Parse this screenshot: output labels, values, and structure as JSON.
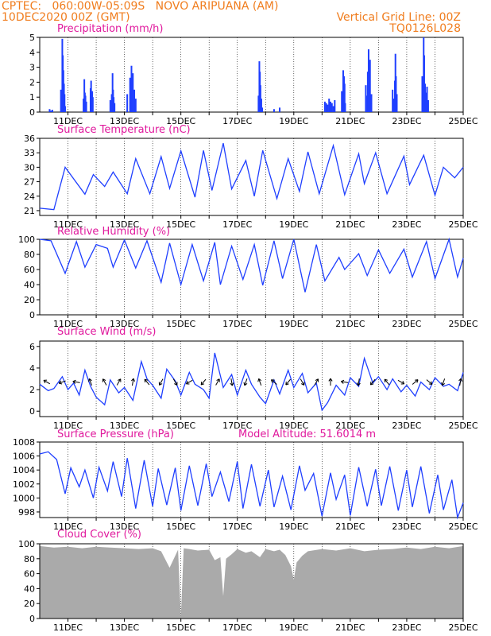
{
  "header": {
    "line1_left": "CPTEC:   060:00W-05:09S   NOVO ARIPUANA (AM)",
    "line2_left": "10DEC2020 00Z (GMT)",
    "line2_right": "Vertical Grid Line: 00Z",
    "line3_right": "TQ0126L028"
  },
  "colors": {
    "header": "#f07d1e",
    "title": "#e0199d",
    "series": "#1f3fff",
    "cloud": "#aaaaaa"
  },
  "x_axis": {
    "start_day": 10,
    "end_day": 25,
    "tick_labels": [
      "11DEC",
      "13DEC",
      "15DEC",
      "17DEC",
      "19DEC",
      "21DEC",
      "23DEC",
      "25DEC"
    ]
  },
  "chart_data": [
    {
      "type": "bar",
      "title": "Precipitation (mm/h)",
      "ylim": [
        0,
        5
      ],
      "yticks": [
        0,
        1,
        2,
        3,
        4,
        5
      ],
      "x_days_from_10dec": [
        0.35,
        0.4,
        0.45,
        0.75,
        0.8,
        0.82,
        0.84,
        0.86,
        0.88,
        0.9,
        1.55,
        1.58,
        1.6,
        1.62,
        1.65,
        1.8,
        1.82,
        1.84,
        1.86,
        1.88,
        2.5,
        2.55,
        2.58,
        2.6,
        2.62,
        2.65,
        3.1,
        3.2,
        3.25,
        3.3,
        3.35,
        3.4,
        7.75,
        7.78,
        7.8,
        7.82,
        7.85,
        7.88,
        8.3,
        8.5,
        10.1,
        10.15,
        10.2,
        10.25,
        10.3,
        10.35,
        10.4,
        10.45,
        10.7,
        10.75,
        10.78,
        10.8,
        10.82,
        11.55,
        11.6,
        11.62,
        11.65,
        11.7,
        11.75,
        12.5,
        12.55,
        12.58,
        12.6,
        12.62,
        12.65,
        13.55,
        13.6,
        13.62,
        13.65,
        13.68,
        13.72,
        13.76
      ],
      "values": [
        0.2,
        0.1,
        0.15,
        1.5,
        4.9,
        3.8,
        2.8,
        1.9,
        1.2,
        0.4,
        0.9,
        2.2,
        1.3,
        1.1,
        0.7,
        1.6,
        2.1,
        1.2,
        1.4,
        1.0,
        0.8,
        1.2,
        2.6,
        1.5,
        1.0,
        0.6,
        1.2,
        2.3,
        3.1,
        2.6,
        1.5,
        0.9,
        1.1,
        3.4,
        2.7,
        1.8,
        0.9,
        0.3,
        0.2,
        0.3,
        0.7,
        0.6,
        0.5,
        0.9,
        0.7,
        0.6,
        0.4,
        0.8,
        1.4,
        2.8,
        2.4,
        1.9,
        0.6,
        1.8,
        1.1,
        2.7,
        4.2,
        3.5,
        1.2,
        1.5,
        0.9,
        2.1,
        3.9,
        2.4,
        1.2,
        2.4,
        5.0,
        3.8,
        1.9,
        1.3,
        1.7,
        0.8
      ]
    },
    {
      "type": "line",
      "title": "Surface Temperature (nC)",
      "ylim": [
        20,
        36
      ],
      "yticks": [
        21,
        24,
        27,
        30,
        33,
        36
      ],
      "x": [
        0,
        0.5,
        0.9,
        1.6,
        1.9,
        2.3,
        2.6,
        3.1,
        3.4,
        3.9,
        4.3,
        4.6,
        5.0,
        5.5,
        5.8,
        6.1,
        6.5,
        6.8,
        7.3,
        7.6,
        7.9,
        8.4,
        8.8,
        9.2,
        9.5,
        9.9,
        10.4,
        10.8,
        11.3,
        11.5,
        11.9,
        12.3,
        12.9,
        13.1,
        13.6,
        14.0,
        14.3,
        14.7,
        15.0
      ],
      "values": [
        21.5,
        21.2,
        30.0,
        24.4,
        28.5,
        26.0,
        29.0,
        24.5,
        31.8,
        24.5,
        32.2,
        25.6,
        33.4,
        23.8,
        33.5,
        25.2,
        35.0,
        25.5,
        31.4,
        24.0,
        33.5,
        23.5,
        31.8,
        25.0,
        33.2,
        24.5,
        34.5,
        24.3,
        32.8,
        26.6,
        33.0,
        24.5,
        32.3,
        26.4,
        32.5,
        24.2,
        30.0,
        27.8,
        30.0
      ]
    },
    {
      "type": "line",
      "title": "Relative Humidity (%)",
      "ylim": [
        0,
        100
      ],
      "yticks": [
        0,
        20,
        40,
        60,
        80,
        100
      ],
      "x": [
        0,
        0.4,
        0.9,
        1.3,
        1.6,
        2.0,
        2.4,
        2.6,
        3.0,
        3.4,
        3.8,
        4.3,
        4.6,
        5.0,
        5.4,
        5.8,
        6.2,
        6.4,
        6.8,
        7.2,
        7.6,
        7.9,
        8.3,
        8.6,
        9.0,
        9.4,
        9.8,
        10.1,
        10.6,
        10.8,
        11.3,
        11.6,
        12.0,
        12.4,
        12.9,
        13.2,
        13.7,
        14.0,
        14.5,
        14.8,
        15.0
      ],
      "values": [
        100,
        98,
        55,
        97,
        63,
        93,
        88,
        63,
        99,
        62,
        98,
        43,
        95,
        40,
        93,
        45,
        96,
        40,
        91,
        47,
        93,
        39,
        98,
        48,
        100,
        30,
        93,
        45,
        76,
        60,
        81,
        52,
        86,
        55,
        87,
        50,
        97,
        48,
        100,
        50,
        75
      ]
    },
    {
      "type": "line",
      "title": "Surface Wind (m/s)",
      "ylim": [
        -0.5,
        6.5
      ],
      "yticks": [
        0,
        2,
        4,
        6
      ],
      "x": [
        0,
        0.3,
        0.5,
        0.8,
        1.0,
        1.2,
        1.4,
        1.6,
        1.8,
        2.0,
        2.3,
        2.5,
        2.8,
        3.0,
        3.3,
        3.6,
        3.8,
        4.0,
        4.3,
        4.5,
        4.8,
        5.0,
        5.3,
        5.5,
        5.8,
        6.0,
        6.2,
        6.5,
        6.8,
        7.0,
        7.3,
        7.5,
        7.8,
        8.0,
        8.3,
        8.5,
        8.8,
        9.0,
        9.3,
        9.5,
        9.8,
        10.0,
        10.2,
        10.5,
        10.8,
        11.0,
        11.3,
        11.5,
        11.8,
        12.0,
        12.3,
        12.5,
        12.8,
        13.0,
        13.3,
        13.5,
        13.8,
        14.0,
        14.3,
        14.5,
        14.8,
        15.0
      ],
      "values": [
        2.5,
        1.9,
        2.1,
        3.2,
        2.0,
        2.6,
        1.5,
        3.8,
        2.3,
        1.3,
        0.6,
        2.9,
        1.7,
        2.2,
        1.0,
        4.6,
        3.0,
        2.4,
        1.2,
        3.9,
        2.8,
        1.5,
        3.6,
        2.5,
        2.0,
        1.2,
        5.4,
        2.2,
        3.4,
        1.5,
        3.8,
        2.5,
        1.3,
        0.7,
        2.9,
        1.6,
        3.8,
        2.2,
        3.5,
        1.7,
        2.6,
        0.1,
        0.8,
        2.4,
        1.5,
        3.1,
        2.3,
        4.9,
        2.6,
        3.2,
        2.0,
        3.0,
        1.8,
        2.4,
        1.4,
        2.7,
        2.0,
        3.1,
        2.3,
        2.5,
        1.9,
        3.6
      ],
      "arrow_x": [
        0.25,
        0.8,
        1.3,
        1.8,
        2.3,
        2.8,
        3.3,
        3.8,
        4.3,
        4.8,
        5.3,
        5.8,
        6.3,
        6.8,
        7.3,
        7.8,
        8.3,
        8.8,
        9.3,
        9.8,
        10.3,
        10.8,
        11.3,
        11.8,
        12.3,
        12.8,
        13.3,
        13.8,
        14.3,
        14.9
      ],
      "arrow_angle_deg": [
        150,
        200,
        170,
        110,
        120,
        60,
        80,
        130,
        240,
        300,
        210,
        230,
        60,
        280,
        250,
        110,
        140,
        230,
        300,
        60,
        90,
        170,
        260,
        230,
        130,
        330,
        40,
        320,
        250,
        80
      ]
    },
    {
      "type": "line",
      "title": "Surface Pressure (hPa)",
      "subtitle": "Model Altitude: 51.6014 m",
      "ylim": [
        997.2,
        1008
      ],
      "yticks": [
        998,
        1000,
        1002,
        1004,
        1006,
        1008
      ],
      "x": [
        0,
        0.3,
        0.6,
        0.9,
        1.1,
        1.4,
        1.6,
        1.9,
        2.1,
        2.4,
        2.6,
        2.9,
        3.1,
        3.4,
        3.7,
        4.0,
        4.2,
        4.5,
        4.8,
        5.0,
        5.3,
        5.6,
        5.9,
        6.1,
        6.4,
        6.7,
        7.0,
        7.2,
        7.5,
        7.8,
        8.1,
        8.3,
        8.6,
        8.9,
        9.2,
        9.4,
        9.7,
        10.0,
        10.3,
        10.5,
        10.8,
        11.0,
        11.3,
        11.6,
        11.9,
        12.1,
        12.4,
        12.7,
        13.0,
        13.2,
        13.5,
        13.8,
        14.1,
        14.3,
        14.6,
        14.8,
        15.0
      ],
      "values": [
        1006.3,
        1006.6,
        1005.5,
        1000.6,
        1004.3,
        1001.6,
        1004.0,
        1000.0,
        1004.4,
        1001.0,
        1005.2,
        1000.2,
        1005.7,
        998.5,
        1005.4,
        998.8,
        1004.2,
        999.0,
        1004.3,
        998.2,
        1004.6,
        998.9,
        1004.9,
        1000.2,
        1003.7,
        999.5,
        1005.2,
        998.5,
        1004.8,
        998.8,
        1004.0,
        998.7,
        1003.1,
        998.3,
        1004.6,
        1001.1,
        1003.5,
        997.4,
        1003.6,
        999.8,
        1003.3,
        997.5,
        1004.4,
        998.8,
        1004.1,
        998.9,
        1004.5,
        998.2,
        1004.0,
        998.7,
        1004.5,
        997.8,
        1003.3,
        998.3,
        1002.6,
        997.2,
        999.3
      ]
    },
    {
      "type": "area",
      "title": "Cloud Cover (%)",
      "ylim": [
        0,
        100
      ],
      "yticks": [
        0,
        20,
        40,
        60,
        80,
        100
      ],
      "x": [
        0,
        0.5,
        1.0,
        1.5,
        2.0,
        2.5,
        3.0,
        3.5,
        4.0,
        4.3,
        4.6,
        4.9,
        5.0,
        5.1,
        5.3,
        5.6,
        6.0,
        6.2,
        6.4,
        6.5,
        6.6,
        6.8,
        7.0,
        7.3,
        7.5,
        7.8,
        8.0,
        8.3,
        8.5,
        8.7,
        8.9,
        9.0,
        9.1,
        9.3,
        9.5,
        10.0,
        10.5,
        11.0,
        11.5,
        12.0,
        12.5,
        13.0,
        13.5,
        14.0,
        14.5,
        15.0
      ],
      "values": [
        97,
        95,
        96,
        94,
        96,
        95,
        94,
        93,
        94,
        90,
        68,
        92,
        2,
        94,
        93,
        91,
        92,
        78,
        82,
        30,
        80,
        86,
        93,
        88,
        90,
        82,
        93,
        90,
        92,
        85,
        70,
        52,
        75,
        84,
        90,
        93,
        91,
        94,
        90,
        92,
        93,
        95,
        93,
        96,
        94,
        97
      ]
    }
  ]
}
